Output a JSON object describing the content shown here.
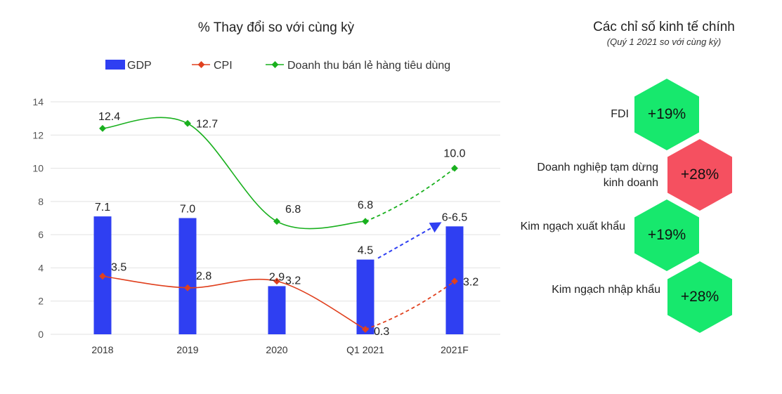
{
  "chart_data": {
    "type": "bar+line",
    "title": "% Thay đổi so với cùng kỳ",
    "categories": [
      "2018",
      "2019",
      "2020",
      "Q1 2021",
      "2021F"
    ],
    "ylim": [
      0,
      14
    ],
    "yticks": [
      0,
      2,
      4,
      6,
      8,
      10,
      12,
      14
    ],
    "grid": true,
    "legend_position": "top",
    "series": [
      {
        "name": "GDP",
        "kind": "bar",
        "color": "#2f3ff2",
        "values": [
          7.1,
          7.0,
          2.9,
          4.5,
          6.5
        ],
        "labels": [
          "7.1",
          "7.0",
          "2.9",
          "4.5",
          "6-6.5"
        ],
        "forecast_from_index": 3,
        "forecast_color": "#2f3ff2"
      },
      {
        "name": "CPI",
        "kind": "line",
        "color": "#e0401e",
        "values": [
          3.5,
          2.8,
          3.2,
          0.3,
          3.2
        ],
        "labels": [
          "3.5",
          "2.8",
          "3.2",
          "0.3",
          "3.2"
        ],
        "forecast_from_index": 3
      },
      {
        "name": "Doanh thu bán lẻ hàng tiêu dùng",
        "kind": "line",
        "color": "#19b01e",
        "values": [
          12.4,
          12.7,
          6.8,
          6.8,
          10.0
        ],
        "labels": [
          "12.4",
          "12.7",
          "6.8",
          "6.8",
          "10.0"
        ],
        "forecast_from_index": 3
      }
    ]
  },
  "indicators": {
    "title": "Các chỉ số kinh tế chính",
    "subtitle": "(Quý 1 2021 so với cùng kỳ)",
    "items": [
      {
        "label": "FDI",
        "value": "+19%",
        "color": "#17e86d"
      },
      {
        "label": "Doanh nghiệp tạm dừng kinh doanh",
        "value": "+28%",
        "color": "#f55060"
      },
      {
        "label": "Kim ngạch xuất khẩu",
        "value": "+19%",
        "color": "#17e86d"
      },
      {
        "label": "Kim ngạch nhập khẩu",
        "value": "+28%",
        "color": "#17e86d"
      }
    ]
  }
}
